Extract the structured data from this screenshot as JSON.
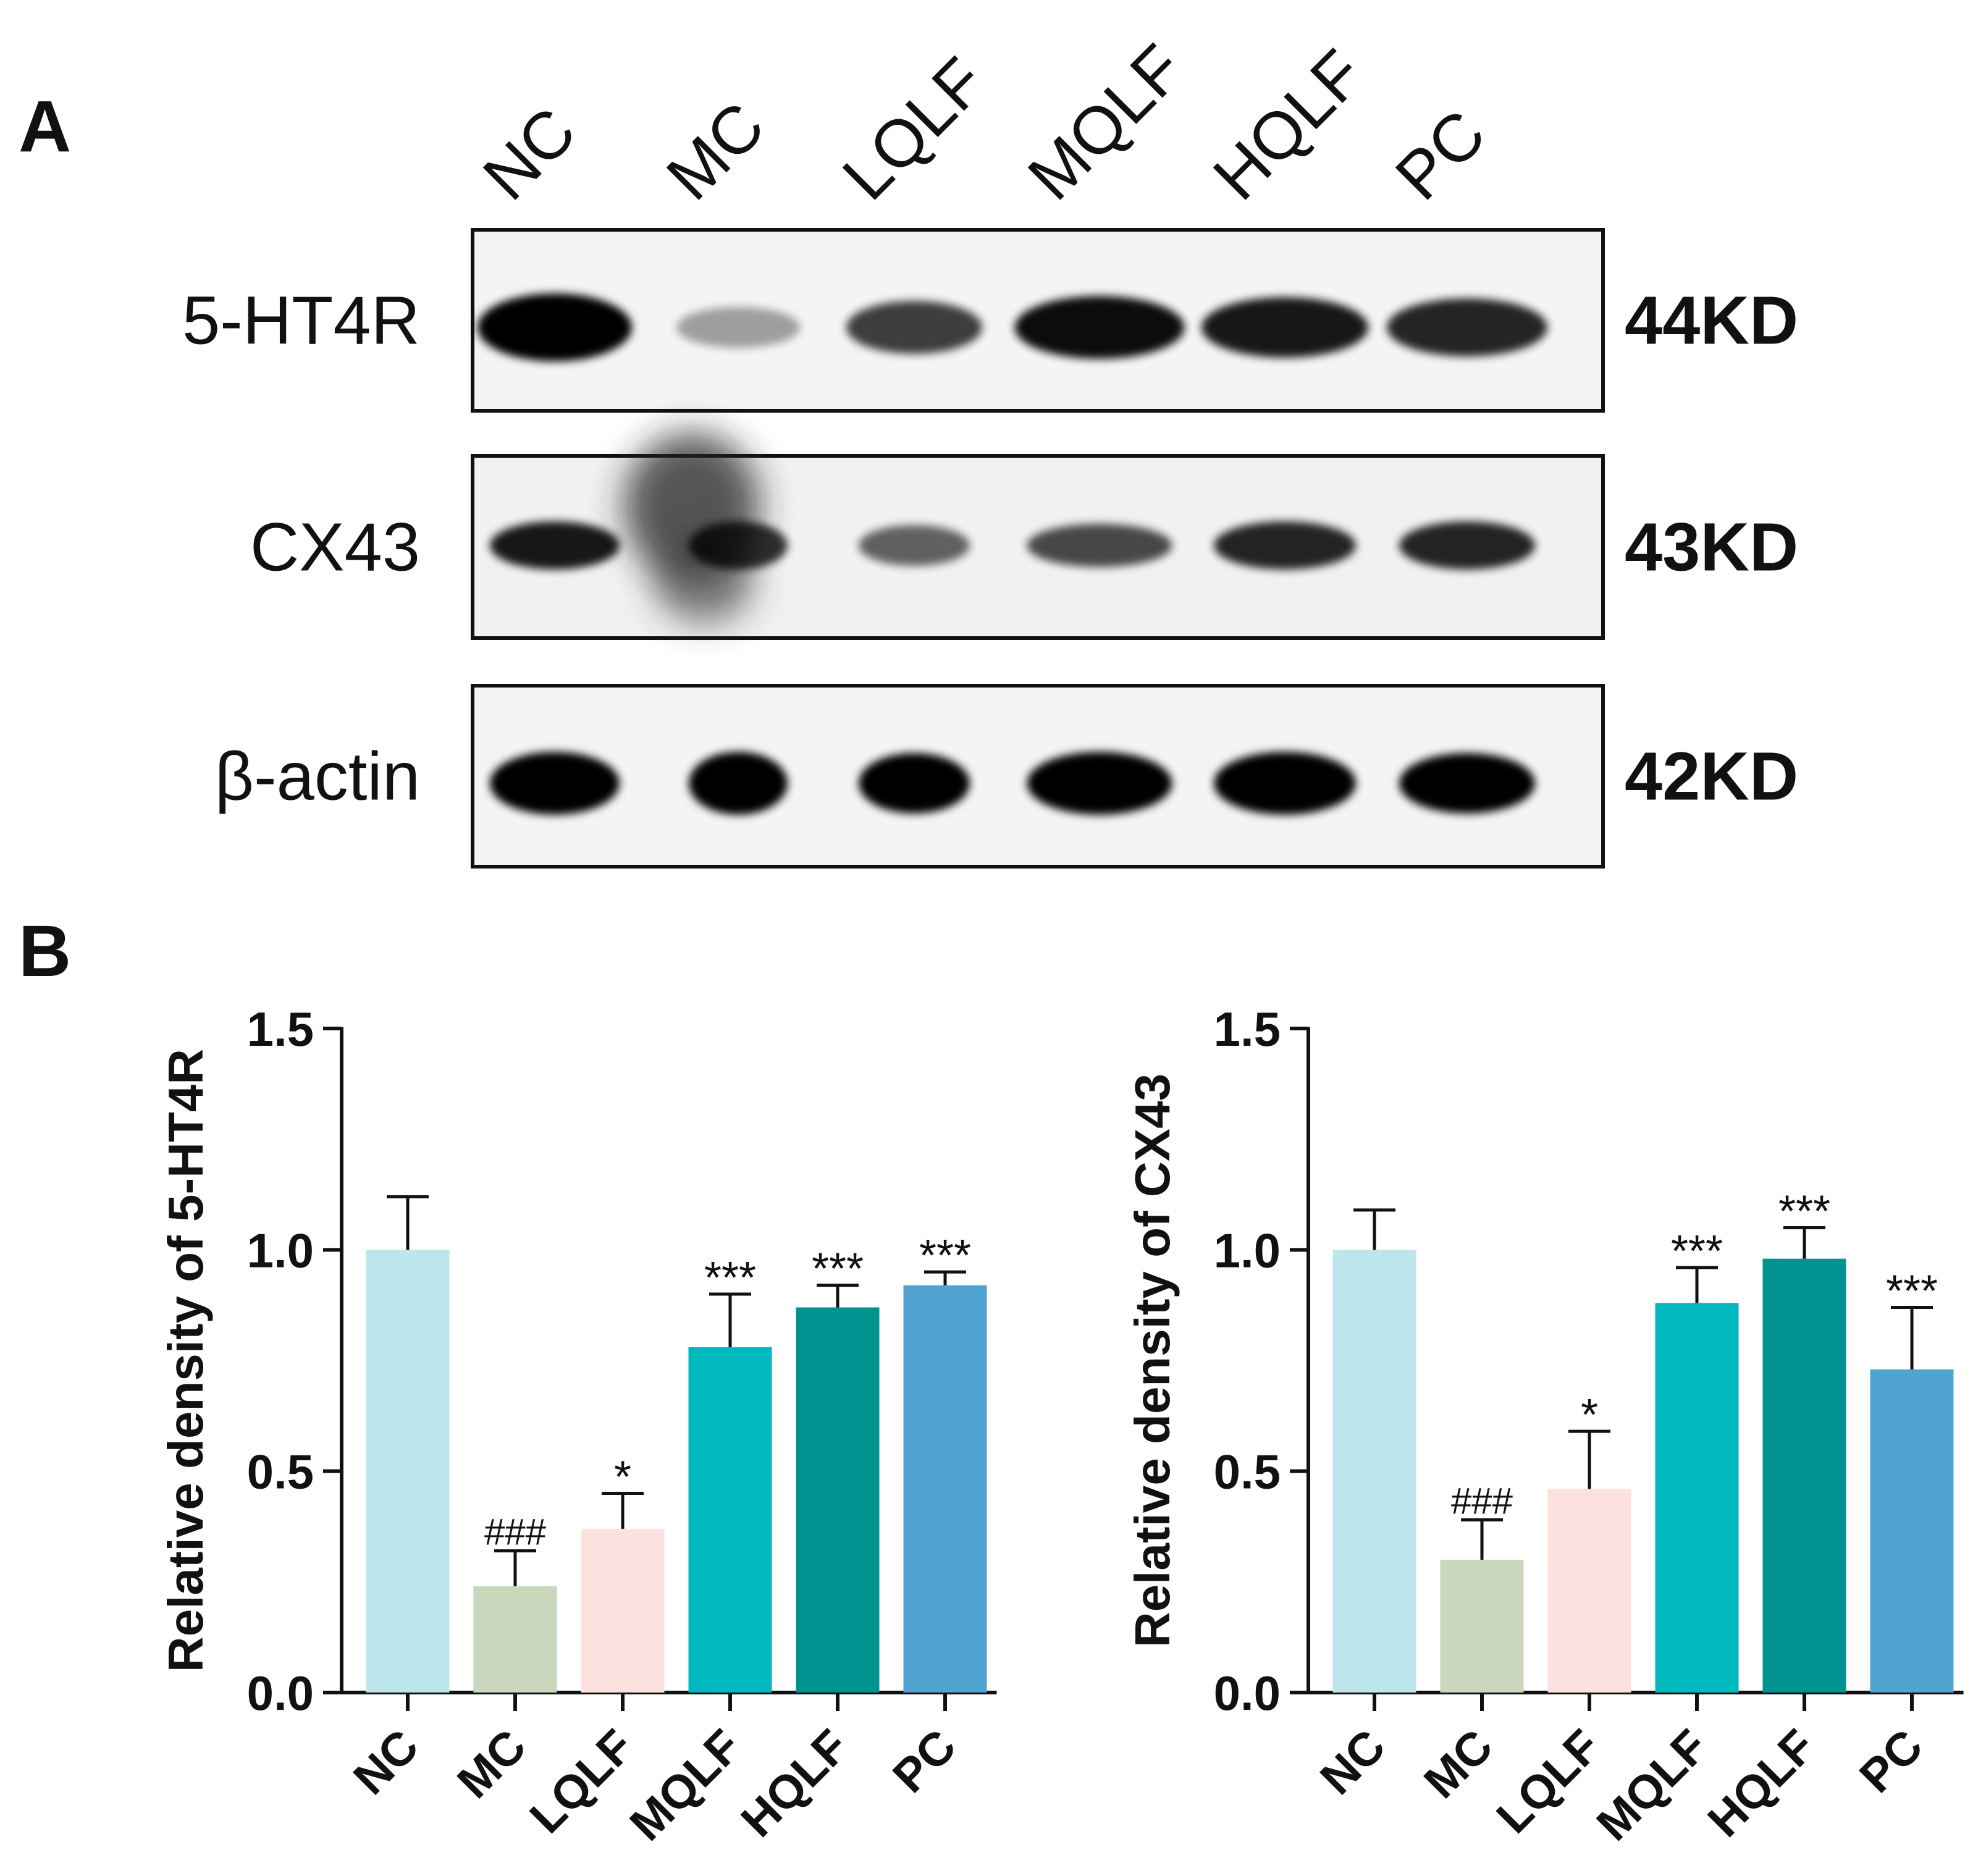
{
  "panels": {
    "a_label": "A",
    "b_label": "B"
  },
  "blot": {
    "lanes": [
      "NC",
      "MC",
      "LQLF",
      "MQLF",
      "HQLF",
      "PC"
    ],
    "rows": [
      {
        "protein": "5-HT4R",
        "size": "44KD",
        "band_intensity": [
          1.0,
          0.35,
          0.75,
          0.95,
          0.9,
          0.85
        ],
        "band_thickness": [
          1.0,
          0.45,
          0.7,
          0.9,
          0.85,
          0.8
        ]
      },
      {
        "protein": "CX43",
        "size": "43KD",
        "band_intensity": [
          0.9,
          0.8,
          0.6,
          0.7,
          0.85,
          0.85
        ],
        "band_thickness": [
          0.6,
          0.6,
          0.45,
          0.5,
          0.6,
          0.6
        ]
      },
      {
        "protein": "β-actin",
        "size": "42KD",
        "band_intensity": [
          1.0,
          1.0,
          1.0,
          1.0,
          1.0,
          1.0
        ],
        "band_thickness": [
          0.9,
          0.9,
          0.85,
          0.9,
          0.9,
          0.85
        ]
      }
    ]
  },
  "chart_data": [
    {
      "type": "bar",
      "ylabel": "Relative density of 5-HT4R",
      "categories": [
        "NC",
        "MC",
        "LQLF",
        "MQLF",
        "HQLF",
        "PC"
      ],
      "values": [
        1.0,
        0.24,
        0.37,
        0.78,
        0.87,
        0.92
      ],
      "errors": [
        0.12,
        0.08,
        0.08,
        0.12,
        0.05,
        0.03
      ],
      "annotations": [
        "",
        "###",
        "*",
        "***",
        "***",
        "***"
      ],
      "colors": [
        "#bde6ec",
        "#c9d7bc",
        "#fde1df",
        "#00b9bf",
        "#00938f",
        "#52a4d0"
      ],
      "ylim": [
        0,
        1.5
      ],
      "yticks": [
        0.0,
        0.5,
        1.0,
        1.5
      ],
      "ytick_labels": [
        "0.0",
        "0.5",
        "1.0",
        "1.5"
      ]
    },
    {
      "type": "bar",
      "ylabel": "Relative density of CX43",
      "categories": [
        "NC",
        "MC",
        "LQLF",
        "MQLF",
        "HQLF",
        "PC"
      ],
      "values": [
        1.0,
        0.3,
        0.46,
        0.88,
        0.98,
        0.73
      ],
      "errors": [
        0.09,
        0.09,
        0.13,
        0.08,
        0.07,
        0.14
      ],
      "annotations": [
        "",
        "###",
        "*",
        "***",
        "***",
        "***"
      ],
      "colors": [
        "#bde6ec",
        "#c9d7bc",
        "#fde1df",
        "#00b9bf",
        "#00938f",
        "#52a4d0"
      ],
      "ylim": [
        0,
        1.5
      ],
      "yticks": [
        0.0,
        0.5,
        1.0,
        1.5
      ],
      "ytick_labels": [
        "0.0",
        "0.5",
        "1.0",
        "1.5"
      ]
    }
  ]
}
